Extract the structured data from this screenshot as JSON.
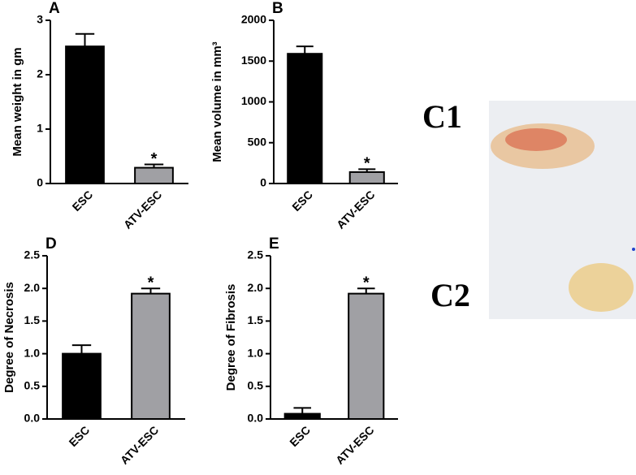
{
  "chart_data": [
    {
      "type": "bar",
      "panel": "A",
      "ylabel": "Mean weight in gm",
      "categories": [
        "ESC",
        "ATV-ESC"
      ],
      "values": [
        2.52,
        0.29
      ],
      "errors": [
        0.23,
        0.06
      ],
      "colors": [
        "#000000",
        "#a0a0a4"
      ],
      "annotations": [
        {
          "text": "*",
          "category": "ATV-ESC"
        }
      ],
      "ylim": [
        0,
        3
      ],
      "yticks": [
        0,
        1,
        2,
        3
      ]
    },
    {
      "type": "bar",
      "panel": "B",
      "ylabel": "Mean volume in mm³",
      "categories": [
        "ESC",
        "ATV-ESC"
      ],
      "values": [
        1590,
        140
      ],
      "errors": [
        90,
        35
      ],
      "colors": [
        "#000000",
        "#a0a0a4"
      ],
      "annotations": [
        {
          "text": "*",
          "category": "ATV-ESC"
        }
      ],
      "ylim": [
        0,
        2000
      ],
      "yticks": [
        0,
        500,
        1000,
        1500,
        2000
      ]
    },
    {
      "type": "bar",
      "panel": "D",
      "ylabel": "Degree of Necrosis",
      "categories": [
        "ESC",
        "ATV-ESC"
      ],
      "values": [
        1.0,
        1.92
      ],
      "errors": [
        0.13,
        0.08
      ],
      "colors": [
        "#000000",
        "#a0a0a4"
      ],
      "annotations": [
        {
          "text": "*",
          "category": "ATV-ESC"
        }
      ],
      "ylim": [
        0,
        2.5
      ],
      "yticks": [
        {
          "value": 0,
          "label": "0.0"
        },
        {
          "value": 0.5,
          "label": "0.5"
        },
        {
          "value": 1,
          "label": "1.0"
        },
        {
          "value": 1.5,
          "label": "1.5"
        },
        {
          "value": 2,
          "label": "2.0"
        },
        {
          "value": 2.5,
          "label": "2.5"
        }
      ]
    },
    {
      "type": "bar",
      "panel": "E",
      "ylabel": "Degree of Fibrosis",
      "categories": [
        "ESC",
        "ATV-ESC"
      ],
      "values": [
        0.08,
        1.92
      ],
      "errors": [
        0.09,
        0.08
      ],
      "colors": [
        "#000000",
        "#a0a0a4"
      ],
      "annotations": [
        {
          "text": "*",
          "category": "ATV-ESC"
        }
      ],
      "ylim": [
        0,
        2.5
      ],
      "yticks": [
        {
          "value": 0,
          "label": "0.0"
        },
        {
          "value": 0.5,
          "label": "0.5"
        },
        {
          "value": 1,
          "label": "1.0"
        },
        {
          "value": 1.5,
          "label": "1.5"
        },
        {
          "value": 2,
          "label": "2.0"
        },
        {
          "value": 2.5,
          "label": "2.5"
        }
      ]
    }
  ],
  "photo": {
    "labels": [
      "C1",
      "C2"
    ]
  }
}
